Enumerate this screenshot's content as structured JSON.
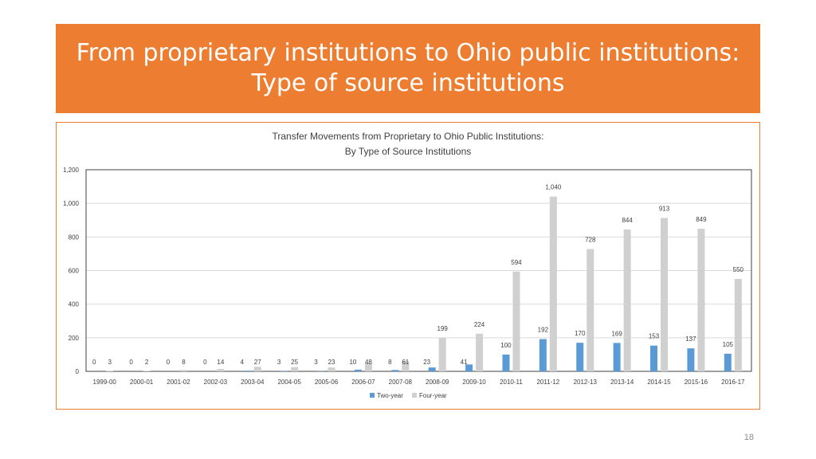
{
  "header": {
    "title_line1": "From proprietary institutions to Ohio public institutions:",
    "title_line2": "Type of source institutions"
  },
  "page_number": "18",
  "colors": {
    "banner": "#ED7D31",
    "two_year": "#5B9BD5",
    "four_year": "#D0D0D0"
  },
  "chart_data": {
    "type": "bar",
    "title": "Transfer Movements from Proprietary to Ohio Public Institutions:",
    "subtitle": "By Type of Source Institutions",
    "categories": [
      "1999-00",
      "2000-01",
      "2001-02",
      "2002-03",
      "2003-04",
      "2004-05",
      "2005-06",
      "2006-07",
      "2007-08",
      "2008-09",
      "2009-10",
      "2010-11",
      "2011-12",
      "2012-13",
      "2013-14",
      "2014-15",
      "2015-16",
      "2016-17"
    ],
    "series": [
      {
        "name": "Two-year",
        "values": [
          0,
          0,
          0,
          0,
          4,
          3,
          3,
          10,
          8,
          23,
          41,
          100,
          192,
          170,
          169,
          153,
          137,
          105
        ]
      },
      {
        "name": "Four-year",
        "values": [
          3,
          2,
          8,
          14,
          27,
          25,
          23,
          48,
          61,
          199,
          224,
          594,
          1040,
          728,
          844,
          913,
          849,
          550
        ]
      }
    ],
    "y_ticks": [
      "0",
      "200",
      "400",
      "600",
      "800",
      "1,000",
      "1,200"
    ],
    "ylim": [
      0,
      1200
    ],
    "data_labels": {
      "Two-year": [
        "0",
        "0",
        "0",
        "0",
        "4",
        "3",
        "3",
        "10",
        "8",
        "23",
        "41",
        "100",
        "192",
        "170",
        "169",
        "153",
        "137",
        "105"
      ],
      "Four-year": [
        "3",
        "2",
        "8",
        "14",
        "27",
        "25",
        "23",
        "48",
        "61",
        "199",
        "224",
        "594",
        "1,040",
        "728",
        "844",
        "913",
        "849",
        "550"
      ]
    },
    "grid": true,
    "legend": "bottom"
  }
}
